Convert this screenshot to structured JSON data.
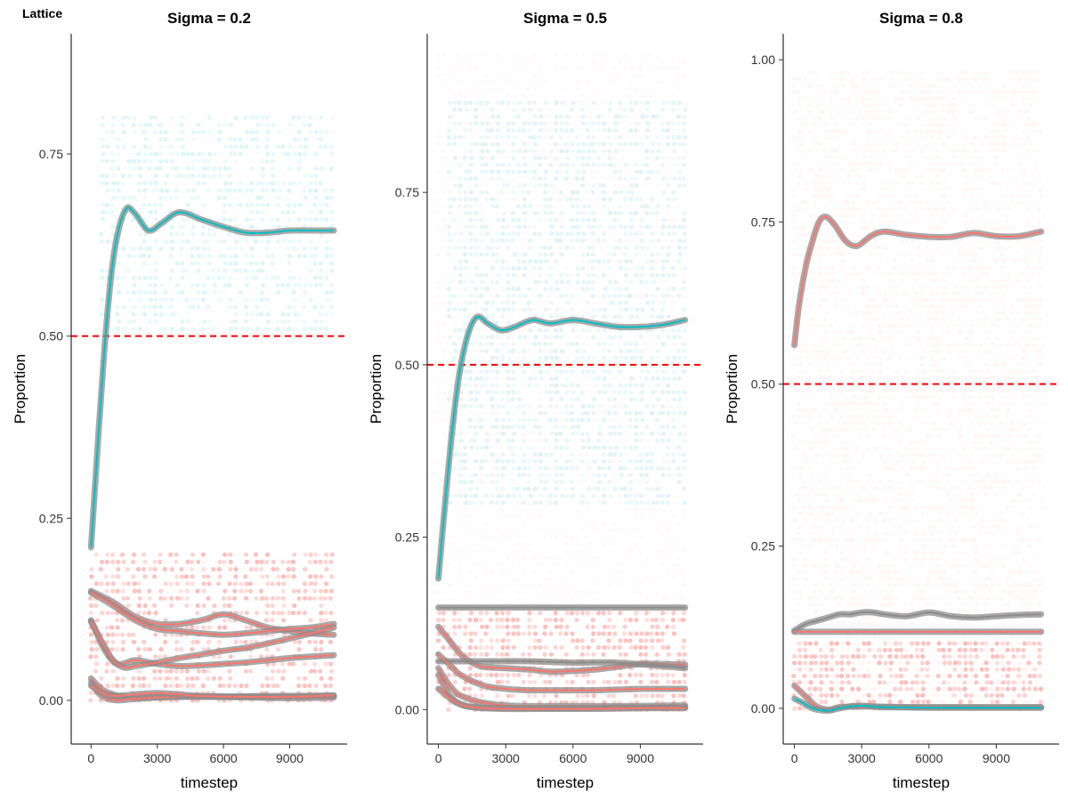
{
  "figure": {
    "tag": "Lattice"
  },
  "colors": {
    "red": "#f8766d",
    "cyan": "#00bfc4",
    "band": "#8c8c8c",
    "threshold": "#ff0000"
  },
  "chart_data": [
    {
      "type": "scatter",
      "title": "Sigma = 0.2",
      "xlabel": "timestep",
      "ylabel": "Proportion",
      "xlim": [
        -900,
        11600
      ],
      "ylim": [
        -0.06,
        0.915
      ],
      "xticks": [
        0,
        3000,
        6000,
        9000
      ],
      "xtick_labels": [
        "0",
        "3000",
        "6000",
        "9000"
      ],
      "yticks": [
        0,
        0.25,
        0.5,
        0.75
      ],
      "ytick_labels": [
        "0.00",
        "0.25",
        "0.50",
        "0.75"
      ],
      "hline": 0.5,
      "grid": false,
      "scatter_bands": [
        {
          "color": "cyan",
          "x": [
            500,
            11000
          ],
          "y": [
            0.5,
            0.8
          ],
          "opacity": 0.1
        },
        {
          "color": "red",
          "x": [
            0,
            11000
          ],
          "y": [
            0.0,
            0.2
          ],
          "opacity": 0.35
        }
      ],
      "series": [
        {
          "color": "cyan",
          "x": [
            0,
            300,
            600,
            900,
            1200,
            1600,
            2000,
            2600,
            3200,
            4000,
            5000,
            6000,
            7000,
            8000,
            9000,
            10000,
            11000
          ],
          "y": [
            0.21,
            0.35,
            0.48,
            0.58,
            0.64,
            0.675,
            0.668,
            0.645,
            0.655,
            0.67,
            0.66,
            0.65,
            0.642,
            0.642,
            0.645,
            0.645,
            0.645
          ]
        },
        {
          "color": "red",
          "x": [
            0,
            1000,
            2000,
            3000,
            4000,
            5000,
            6000,
            7000,
            8000,
            9000,
            10000,
            11000
          ],
          "y": [
            0.15,
            0.135,
            0.115,
            0.105,
            0.105,
            0.11,
            0.118,
            0.11,
            0.1,
            0.095,
            0.092,
            0.09
          ]
        },
        {
          "color": "red",
          "x": [
            0,
            1000,
            2000,
            3000,
            4000,
            5000,
            6000,
            7000,
            8000,
            9000,
            10000,
            11000
          ],
          "y": [
            0.148,
            0.13,
            0.11,
            0.098,
            0.095,
            0.092,
            0.09,
            0.092,
            0.095,
            0.098,
            0.1,
            0.105
          ]
        },
        {
          "color": "red",
          "x": [
            0,
            600,
            1200,
            2000,
            3000,
            4000,
            5000,
            6000,
            7000,
            8000,
            9000,
            10000,
            11000
          ],
          "y": [
            0.11,
            0.07,
            0.05,
            0.055,
            0.05,
            0.047,
            0.048,
            0.05,
            0.052,
            0.055,
            0.058,
            0.06,
            0.062
          ]
        },
        {
          "color": "red",
          "x": [
            0,
            500,
            1000,
            1500,
            2000,
            3000,
            4000,
            5000,
            6000,
            7000,
            8000,
            9000,
            10000,
            11000
          ],
          "y": [
            0.108,
            0.08,
            0.055,
            0.045,
            0.047,
            0.052,
            0.058,
            0.063,
            0.068,
            0.072,
            0.078,
            0.085,
            0.092,
            0.1
          ]
        },
        {
          "color": "red",
          "x": [
            0,
            500,
            1000,
            1500,
            2000,
            3000,
            4000,
            6000,
            8000,
            11000
          ],
          "y": [
            0.03,
            0.015,
            0.008,
            0.005,
            0.004,
            0.004,
            0.005,
            0.005,
            0.006,
            0.006
          ]
        },
        {
          "color": "red",
          "x": [
            0,
            400,
            800,
            1200,
            2000,
            3000,
            5000,
            7000,
            9000,
            11000
          ],
          "y": [
            0.025,
            0.008,
            0.002,
            0.0,
            0.002,
            0.004,
            0.005,
            0.004,
            0.003,
            0.004
          ]
        },
        {
          "color": "red",
          "x": [
            0,
            500,
            1000,
            2000,
            3000,
            4000,
            5000,
            7000,
            9000,
            11000
          ],
          "y": [
            0.02,
            0.01,
            0.006,
            0.008,
            0.01,
            0.008,
            0.006,
            0.005,
            0.005,
            0.007
          ]
        }
      ]
    },
    {
      "type": "scatter",
      "title": "Sigma = 0.5",
      "xlabel": "timestep",
      "ylabel": "Proportion",
      "xlim": [
        -500,
        11800
      ],
      "ylim": [
        -0.05,
        0.98
      ],
      "xticks": [
        0,
        3000,
        6000,
        9000
      ],
      "xtick_labels": [
        "0",
        "3000",
        "6000",
        "9000"
      ],
      "yticks": [
        0,
        0.25,
        0.5,
        0.75
      ],
      "ytick_labels": [
        "0.00",
        "0.25",
        "0.50",
        "0.75"
      ],
      "hline": 0.5,
      "grid": false,
      "scatter_bands": [
        {
          "color": "cyan",
          "x": [
            500,
            11000
          ],
          "y": [
            0.3,
            0.88
          ],
          "opacity": 0.09
        },
        {
          "color": "red",
          "x": [
            0,
            11000
          ],
          "y": [
            0.0,
            0.14
          ],
          "opacity": 0.35
        },
        {
          "color": "red",
          "x": [
            0,
            11000
          ],
          "y": [
            0.14,
            0.95
          ],
          "opacity": 0.03
        }
      ],
      "series": [
        {
          "color": "cyan",
          "x": [
            0,
            300,
            600,
            900,
            1200,
            1500,
            1800,
            2200,
            2800,
            3400,
            4200,
            5000,
            6000,
            7000,
            8000,
            9000,
            10000,
            11000
          ],
          "y": [
            0.19,
            0.3,
            0.4,
            0.48,
            0.53,
            0.56,
            0.57,
            0.56,
            0.55,
            0.555,
            0.565,
            0.56,
            0.565,
            0.56,
            0.555,
            0.555,
            0.558,
            0.565
          ]
        },
        {
          "color": "band",
          "x": [
            0,
            11000
          ],
          "y": [
            0.148,
            0.148
          ]
        },
        {
          "color": "red",
          "x": [
            0,
            500,
            1000,
            1500,
            2000,
            3000,
            4000,
            5000,
            6000,
            7000,
            8000,
            9000,
            10000,
            11000
          ],
          "y": [
            0.12,
            0.1,
            0.08,
            0.068,
            0.062,
            0.06,
            0.058,
            0.055,
            0.056,
            0.058,
            0.062,
            0.066,
            0.066,
            0.065
          ]
        },
        {
          "color": "band",
          "x": [
            0,
            2000,
            4000,
            6000,
            8000,
            11000
          ],
          "y": [
            0.07,
            0.07,
            0.07,
            0.068,
            0.068,
            0.06
          ]
        },
        {
          "color": "red",
          "x": [
            0,
            500,
            1000,
            2000,
            3000,
            4000,
            5000,
            6000,
            7000,
            8000,
            9000,
            10000,
            11000
          ],
          "y": [
            0.08,
            0.065,
            0.05,
            0.035,
            0.03,
            0.028,
            0.028,
            0.028,
            0.028,
            0.029,
            0.03,
            0.03,
            0.03
          ]
        },
        {
          "color": "red",
          "x": [
            0,
            500,
            1000,
            2000,
            3000,
            4000,
            6000,
            8000,
            11000
          ],
          "y": [
            0.06,
            0.035,
            0.02,
            0.01,
            0.006,
            0.005,
            0.005,
            0.005,
            0.006
          ]
        },
        {
          "color": "red",
          "x": [
            0,
            500,
            1000,
            1500,
            2500,
            4000,
            6000,
            8000,
            11000
          ],
          "y": [
            0.05,
            0.02,
            0.008,
            0.004,
            0.002,
            0.002,
            0.002,
            0.003,
            0.003
          ]
        },
        {
          "color": "red",
          "x": [
            0,
            800,
            1600,
            3000,
            5000,
            7000,
            9000,
            11000
          ],
          "y": [
            0.03,
            0.01,
            0.003,
            0.001,
            0.001,
            0.001,
            0.002,
            0.002
          ]
        }
      ]
    },
    {
      "type": "scatter",
      "title": "Sigma = 0.8",
      "xlabel": "timestep",
      "ylabel": "Proportion",
      "xlim": [
        -500,
        11800
      ],
      "ylim": [
        -0.055,
        1.04
      ],
      "xticks": [
        0,
        3000,
        6000,
        9000
      ],
      "xtick_labels": [
        "0",
        "3000",
        "6000",
        "9000"
      ],
      "yticks": [
        0,
        0.25,
        0.5,
        0.75,
        1.0
      ],
      "ytick_labels": [
        "0.00",
        "0.25",
        "0.50",
        "0.75",
        "1.00"
      ],
      "hline": 0.5,
      "grid": false,
      "scatter_bands": [
        {
          "color": "red",
          "x": [
            0,
            11000
          ],
          "y": [
            0.0,
            0.98
          ],
          "opacity": 0.05
        },
        {
          "color": "red",
          "x": [
            0,
            11000
          ],
          "y": [
            0.0,
            0.1
          ],
          "opacity": 0.35
        }
      ],
      "series": [
        {
          "color": "red",
          "x": [
            0,
            200,
            500,
            800,
            1100,
            1400,
            1800,
            2300,
            2800,
            3400,
            4000,
            5000,
            6000,
            7000,
            8000,
            9000,
            10000,
            11000
          ],
          "y": [
            0.56,
            0.62,
            0.68,
            0.72,
            0.75,
            0.758,
            0.745,
            0.72,
            0.713,
            0.728,
            0.735,
            0.73,
            0.727,
            0.727,
            0.733,
            0.728,
            0.728,
            0.735
          ]
        },
        {
          "color": "band",
          "x": [
            0,
            500,
            1000,
            1500,
            2000,
            2500,
            3000,
            3500,
            4000,
            5000,
            6000,
            7000,
            8000,
            9000,
            10000,
            11000
          ],
          "y": [
            0.12,
            0.13,
            0.135,
            0.14,
            0.145,
            0.145,
            0.148,
            0.148,
            0.145,
            0.142,
            0.148,
            0.142,
            0.14,
            0.142,
            0.144,
            0.145
          ]
        },
        {
          "color": "red",
          "x": [
            0,
            11000
          ],
          "y": [
            0.118,
            0.118
          ]
        },
        {
          "color": "red",
          "x": [
            0,
            300,
            600,
            900,
            1200,
            1600,
            2000,
            3000,
            5000,
            7000,
            9000,
            11000
          ],
          "y": [
            0.035,
            0.025,
            0.015,
            0.005,
            0.0,
            -0.002,
            0.002,
            0.003,
            0.002,
            0.002,
            0.002,
            0.002
          ]
        },
        {
          "color": "cyan",
          "x": [
            0,
            400,
            800,
            1200,
            1600,
            2000,
            2500,
            3000,
            4000,
            6000,
            8000,
            11000
          ],
          "y": [
            0.015,
            0.008,
            0.0,
            -0.003,
            -0.003,
            0.0,
            0.003,
            0.004,
            0.002,
            0.001,
            0.001,
            0.001
          ]
        }
      ]
    }
  ]
}
